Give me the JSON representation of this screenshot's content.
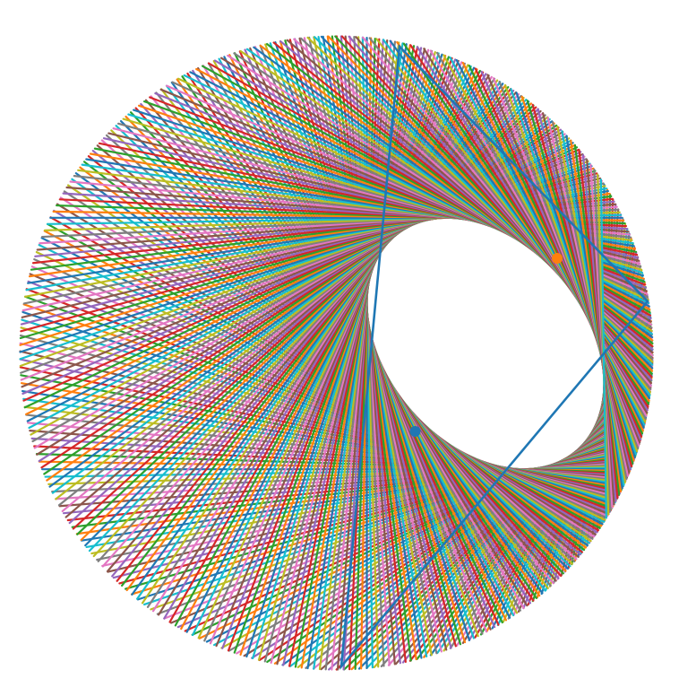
{
  "diagram": {
    "type": "poncelet-chord-envelope",
    "outer_circle": {
      "shape": "circle",
      "color": "#1f77b4"
    },
    "inner_ellipse": {
      "shape": "ellipse",
      "tilt_degrees": 50
    },
    "chord_count": 400,
    "chord_palette": [
      "#1f77b4",
      "#ff7f0e",
      "#2ca02c",
      "#d62728",
      "#9467bd",
      "#8c564b",
      "#e377c2",
      "#7f7f7f",
      "#bcbd22",
      "#17becf"
    ],
    "highlight_triangle": {
      "color": "#1f77b4",
      "vertex_count": 3
    },
    "foci": [
      {
        "name": "focus-1",
        "color": "#1f77b4"
      },
      {
        "name": "focus-2",
        "color": "#ff7f0e"
      }
    ]
  }
}
